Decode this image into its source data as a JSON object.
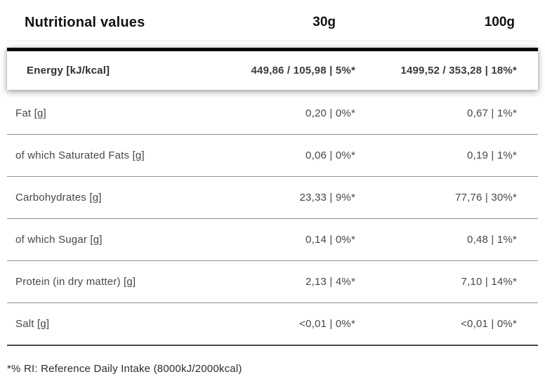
{
  "header": {
    "title": "Nutritional values",
    "col_serving": "30g",
    "col_per100": "100g"
  },
  "energy": {
    "label": "Energy [kJ/kcal]",
    "v30": "449,86 / 105,98 | 5%*",
    "v100": "1499,52 / 353,28 | 18%*"
  },
  "rows": [
    {
      "label": "Fat [g]",
      "v30": "0,20 | 0%*",
      "v100": "0,67 | 1%*"
    },
    {
      "label": "of which Saturated Fats [g]",
      "v30": "0,06 | 0%*",
      "v100": "0,19 | 1%*"
    },
    {
      "label": "Carbohydrates [g]",
      "v30": "23,33 | 9%*",
      "v100": "77,76 | 30%*"
    },
    {
      "label": "of which Sugar [g]",
      "v30": "0,14 | 0%*",
      "v100": "0,48 | 1%*"
    },
    {
      "label": "Protein (in dry matter) [g]",
      "v30": "2,13 | 4%*",
      "v100": "7,10 | 14%*"
    },
    {
      "label": "Salt [g]",
      "v30": "<0,01 | 0%*",
      "v100": "<0,01 | 0%*"
    }
  ],
  "footer": {
    "note": "*% RI: Reference Daily Intake (8000kJ/2000kcal)"
  },
  "colors": {
    "energy_rule": "#0b0b0b",
    "row_separator": "#8f8f92",
    "bottom_rule": "#4a4a4e",
    "header_text": "#121215",
    "body_text": "#47474d",
    "background": "#ffffff"
  }
}
